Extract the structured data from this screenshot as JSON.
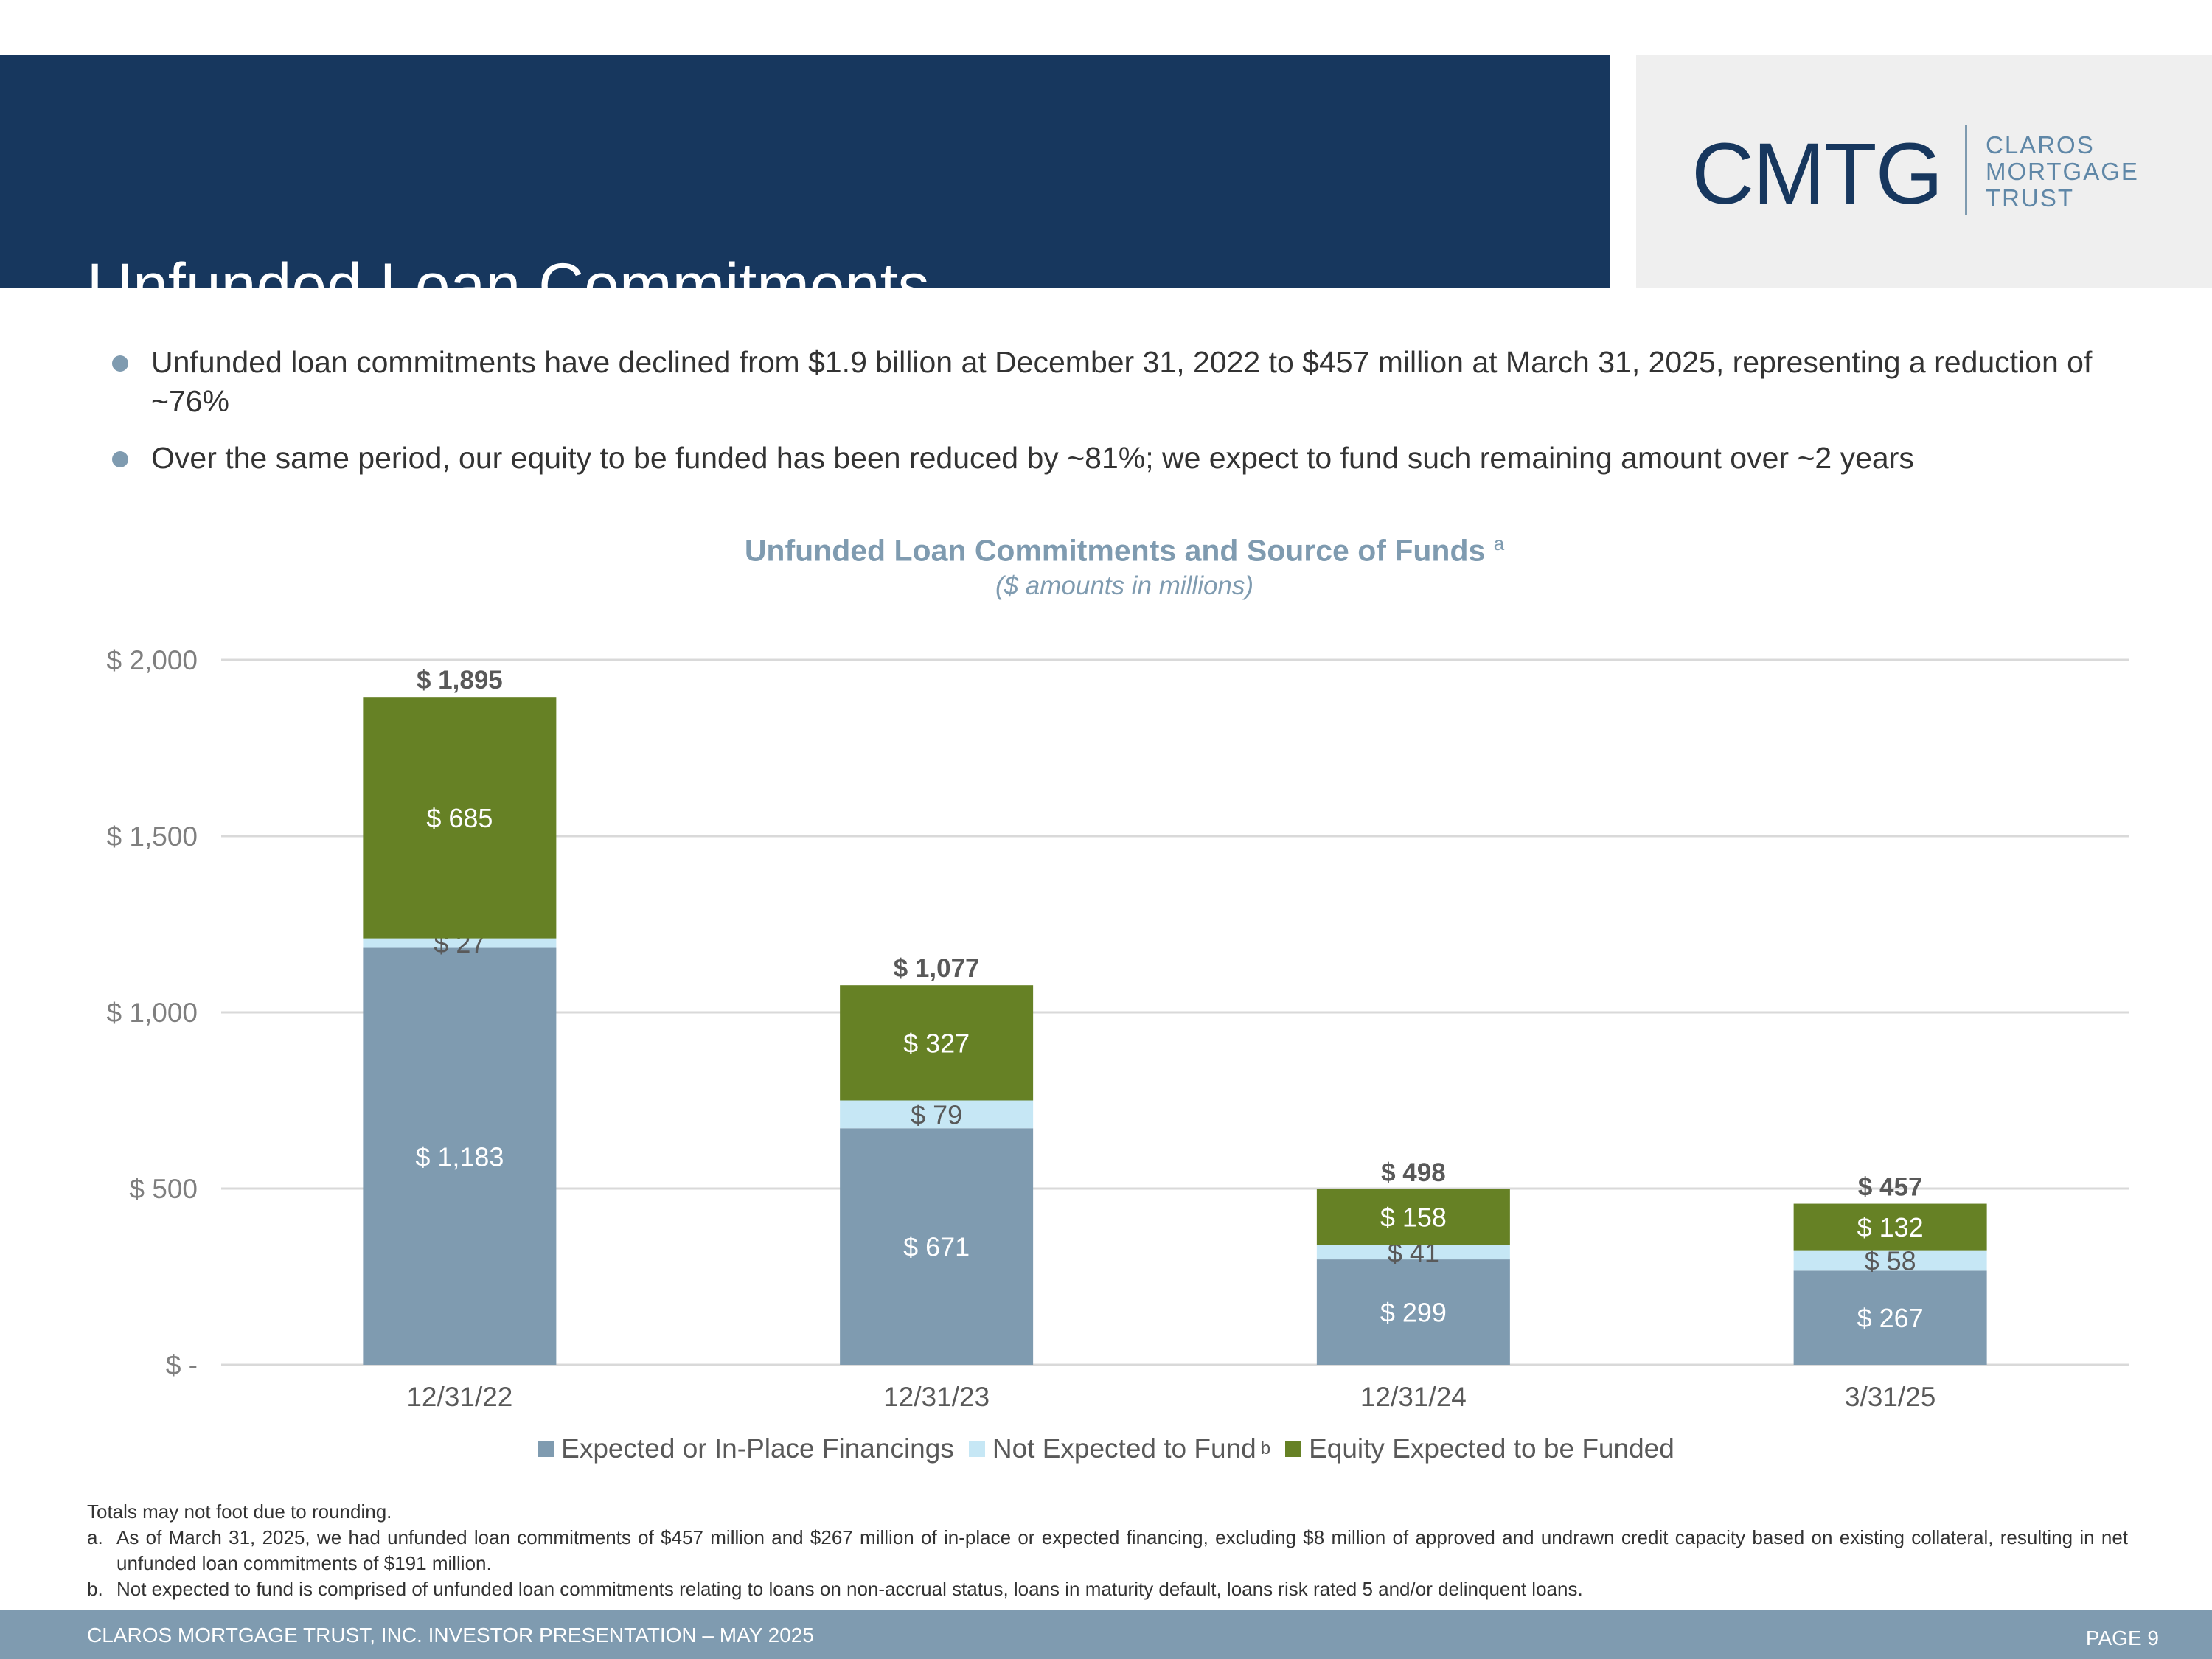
{
  "header": {
    "title": "Unfunded Loan Commitments",
    "logo_mark": "CMTG",
    "logo_words": [
      "CLAROS",
      "MORTGAGE",
      "TRUST"
    ]
  },
  "bullets": [
    "Unfunded loan commitments have declined from $1.9 billion at December 31, 2022 to $457 million at March 31, 2025, representing a reduction of ~76%",
    "Over the same period, our equity to be funded has been reduced by ~81%; we expect to fund such remaining amount over ~2 years"
  ],
  "chart_data": {
    "type": "bar",
    "stacked": true,
    "title": "Unfunded Loan Commitments and Source of Funds",
    "title_footnote": "a",
    "subtitle": "($ amounts in millions)",
    "categories": [
      "12/31/22",
      "12/31/23",
      "12/31/24",
      "3/31/25"
    ],
    "series": [
      {
        "name": "Expected or In-Place Financings",
        "values": [
          1183,
          671,
          299,
          267
        ],
        "labels": [
          "$ 1,183",
          "$ 671",
          "$ 299",
          "$ 267"
        ],
        "color": "#7f9bb0",
        "label_color": "#ffffff"
      },
      {
        "name": "Not Expected to Fund",
        "footnote": "b",
        "values": [
          27,
          79,
          41,
          58
        ],
        "labels": [
          "$ 27",
          "$ 79",
          "$ 41",
          "$ 58"
        ],
        "color": "#c6e7f5",
        "label_color": "#595959"
      },
      {
        "name": "Equity Expected to be Funded",
        "values": [
          685,
          327,
          158,
          132
        ],
        "labels": [
          "$ 685",
          "$ 327",
          "$ 158",
          "$ 132"
        ],
        "color": "#668125",
        "label_color": "#ffffff"
      }
    ],
    "totals": [
      1895,
      1077,
      498,
      457
    ],
    "total_labels": [
      "$ 1,895",
      "$ 1,077",
      "$ 498",
      "$ 457"
    ],
    "ylim": [
      0,
      2000
    ],
    "yticks": [
      0,
      500,
      1000,
      1500,
      2000
    ],
    "ytick_labels": [
      "$ -",
      "$ 500",
      "$ 1,000",
      "$ 1,500",
      "$ 2,000"
    ],
    "xlabel": "",
    "ylabel": "",
    "grid": true,
    "legend": "bottom"
  },
  "notes": {
    "intro": "Totals may not foot due to rounding.",
    "items": [
      {
        "mark": "a.",
        "text": "As of March 31, 2025, we had unfunded loan commitments of $457 million and $267 million of in-place or expected financing, excluding $8 million of approved and undrawn credit capacity based on existing collateral, resulting in net unfunded loan commitments of $191 million."
      },
      {
        "mark": "b.",
        "text": "Not expected to fund is comprised of unfunded loan commitments relating to loans on non-accrual status, loans in maturity default, loans risk rated 5 and/or delinquent loans."
      }
    ]
  },
  "footer": {
    "left": "CLAROS MORTGAGE TRUST, INC. INVESTOR PRESENTATION – MAY 2025",
    "right": "PAGE 9"
  }
}
